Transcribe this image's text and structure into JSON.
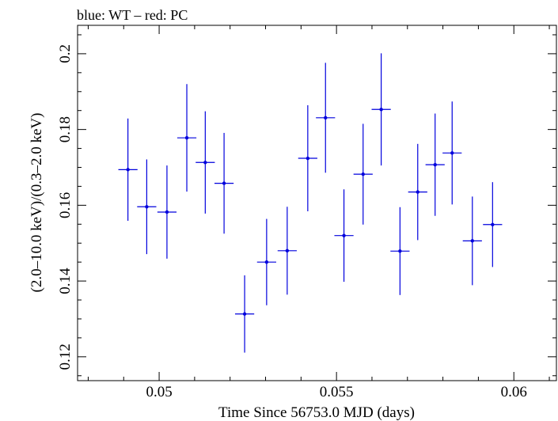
{
  "chart_data": {
    "type": "scatter",
    "title": "blue: WT – red: PC",
    "xlabel": "Time Since 56753.0 MJD (days)",
    "ylabel": "(2.0–10.0 keV)/(0.3–2.0 keV)",
    "xlim": [
      0.0477,
      0.0612
    ],
    "ylim": [
      0.1137,
      0.2075
    ],
    "x_ticks": [
      {
        "value": 0.05,
        "label": "0.05"
      },
      {
        "value": 0.055,
        "label": "0.055"
      },
      {
        "value": 0.06,
        "label": "0.06"
      }
    ],
    "y_ticks": [
      {
        "value": 0.12,
        "label": "0.12"
      },
      {
        "value": 0.14,
        "label": "0.14"
      },
      {
        "value": 0.16,
        "label": "0.16"
      },
      {
        "value": 0.18,
        "label": "0.18"
      },
      {
        "value": 0.2,
        "label": "0.2"
      }
    ],
    "grid": false,
    "series": [
      {
        "name": "WT",
        "color": "#0000dd",
        "points": [
          {
            "x": 0.04912,
            "xerr": 0.00027,
            "y": 0.1694,
            "yerr": 0.0135
          },
          {
            "x": 0.04965,
            "xerr": 0.00027,
            "y": 0.1596,
            "yerr": 0.0125
          },
          {
            "x": 0.05022,
            "xerr": 0.00027,
            "y": 0.1582,
            "yerr": 0.0123
          },
          {
            "x": 0.05078,
            "xerr": 0.00027,
            "y": 0.1778,
            "yerr": 0.0142
          },
          {
            "x": 0.0513,
            "xerr": 0.00027,
            "y": 0.1713,
            "yerr": 0.0135
          },
          {
            "x": 0.05183,
            "xerr": 0.00027,
            "y": 0.1658,
            "yerr": 0.0133
          },
          {
            "x": 0.05241,
            "xerr": 0.00027,
            "y": 0.1313,
            "yerr": 0.0102
          },
          {
            "x": 0.05303,
            "xerr": 0.00027,
            "y": 0.145,
            "yerr": 0.0114
          },
          {
            "x": 0.05361,
            "xerr": 0.00027,
            "y": 0.148,
            "yerr": 0.0116
          },
          {
            "x": 0.05419,
            "xerr": 0.00027,
            "y": 0.1724,
            "yerr": 0.014
          },
          {
            "x": 0.05469,
            "xerr": 0.00027,
            "y": 0.1831,
            "yerr": 0.0145
          },
          {
            "x": 0.05521,
            "xerr": 0.00027,
            "y": 0.152,
            "yerr": 0.0122
          },
          {
            "x": 0.05575,
            "xerr": 0.00027,
            "y": 0.1682,
            "yerr": 0.0133
          },
          {
            "x": 0.05626,
            "xerr": 0.00027,
            "y": 0.1853,
            "yerr": 0.0148
          },
          {
            "x": 0.05679,
            "xerr": 0.00027,
            "y": 0.1479,
            "yerr": 0.0116
          },
          {
            "x": 0.05729,
            "xerr": 0.00027,
            "y": 0.1635,
            "yerr": 0.0127
          },
          {
            "x": 0.05778,
            "xerr": 0.00027,
            "y": 0.1707,
            "yerr": 0.0135
          },
          {
            "x": 0.05826,
            "xerr": 0.00027,
            "y": 0.1738,
            "yerr": 0.0136
          },
          {
            "x": 0.05883,
            "xerr": 0.00027,
            "y": 0.1506,
            "yerr": 0.0117
          },
          {
            "x": 0.0594,
            "xerr": 0.00027,
            "y": 0.1549,
            "yerr": 0.0112
          }
        ]
      }
    ]
  }
}
